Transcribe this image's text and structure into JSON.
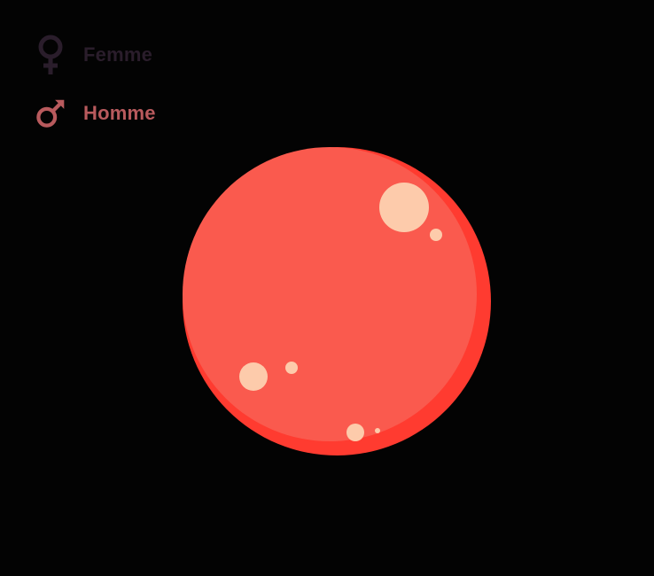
{
  "legend": {
    "items": [
      {
        "label": "Femme",
        "icon": "venus-icon",
        "color": "#2a1d2b"
      },
      {
        "label": "Homme",
        "icon": "mars-icon",
        "color": "#b85a5d"
      }
    ]
  },
  "colors": {
    "background": "#030303",
    "planet": "#fa5a4e",
    "planet_shadow": "#ff3b30",
    "bubble": "#fdcbab"
  }
}
